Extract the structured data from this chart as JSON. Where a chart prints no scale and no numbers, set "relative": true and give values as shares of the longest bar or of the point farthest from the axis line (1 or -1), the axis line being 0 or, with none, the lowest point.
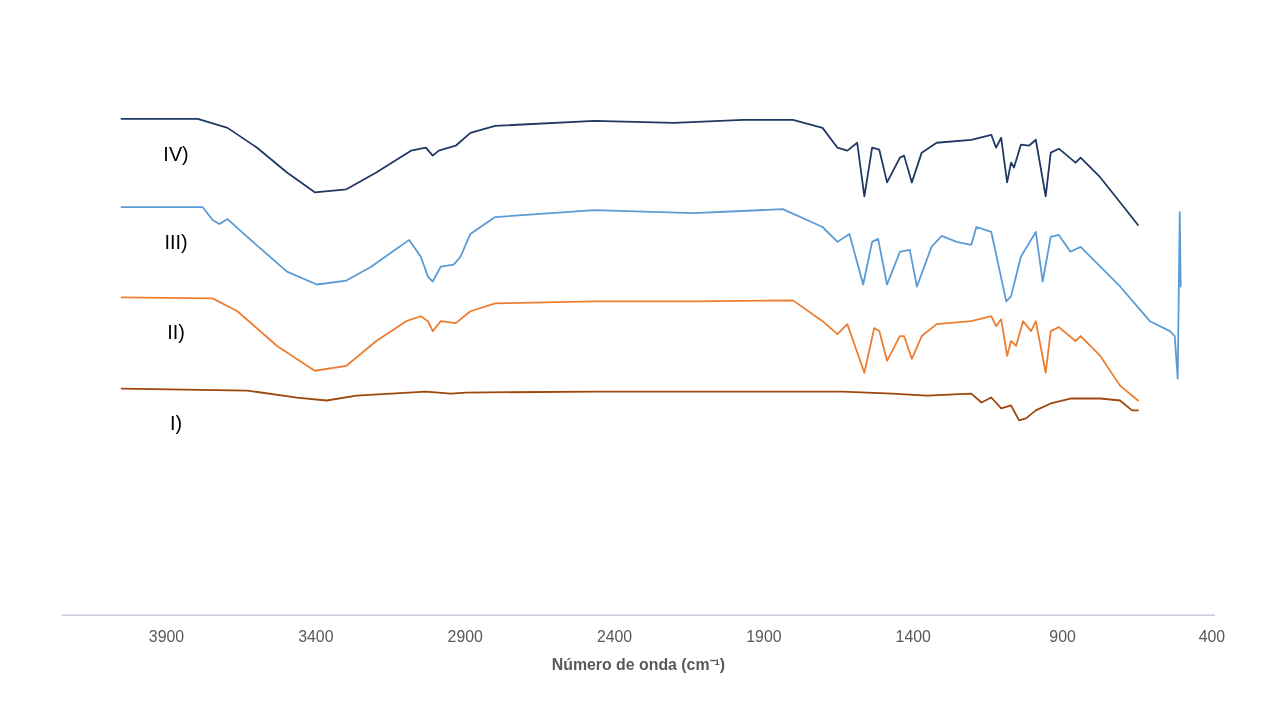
{
  "chart_data": {
    "type": "line",
    "relative": true,
    "xlabel": "Número de onda (cm⁻¹)",
    "xlim": [
      4250,
      390
    ],
    "xticks": [
      3900,
      3400,
      2900,
      2400,
      1900,
      1400,
      900,
      400
    ],
    "grid": false,
    "legend": false,
    "marker": "none",
    "line_style": "solid",
    "series": [
      {
        "name": "IV)",
        "color": "#203864",
        "x": [
          4049,
          3794,
          3694,
          3595,
          3495,
          3402,
          3296,
          3196,
          3080,
          3030,
          3007,
          2987,
          2930,
          2881,
          2798,
          2466,
          2200,
          1967,
          1801,
          1702,
          1652,
          1619,
          1586,
          1562,
          1536,
          1512,
          1486,
          1443,
          1429,
          1403,
          1370,
          1320,
          1204,
          1137,
          1121,
          1104,
          1084,
          1071,
          1061,
          1038,
          1011,
          988,
          955,
          938,
          911,
          855,
          838,
          772,
          706,
          646
        ],
        "values": [
          1.0,
          1.0,
          0.982,
          0.942,
          0.892,
          0.852,
          0.858,
          0.892,
          0.936,
          0.942,
          0.926,
          0.936,
          0.946,
          0.972,
          0.986,
          0.996,
          0.992,
          0.998,
          0.998,
          0.982,
          0.942,
          0.936,
          0.952,
          0.844,
          0.942,
          0.938,
          0.872,
          0.922,
          0.926,
          0.872,
          0.932,
          0.952,
          0.958,
          0.968,
          0.942,
          0.962,
          0.872,
          0.912,
          0.902,
          0.948,
          0.946,
          0.958,
          0.844,
          0.932,
          0.94,
          0.912,
          0.922,
          0.882,
          0.832,
          0.786
        ]
      },
      {
        "name": "III)",
        "color": "#5b9bd5",
        "x": [
          4049,
          3777,
          3744,
          3721,
          3694,
          3628,
          3495,
          3395,
          3296,
          3213,
          3086,
          3047,
          3023,
          3007,
          2980,
          2937,
          2914,
          2881,
          2798,
          2466,
          2134,
          1835,
          1702,
          1652,
          1612,
          1566,
          1536,
          1516,
          1486,
          1443,
          1410,
          1386,
          1337,
          1303,
          1253,
          1204,
          1187,
          1137,
          1087,
          1071,
          1038,
          988,
          965,
          938,
          911,
          872,
          838,
          772,
          706,
          606,
          539,
          523,
          513,
          506,
          503
        ],
        "values": [
          0.822,
          0.822,
          0.796,
          0.788,
          0.798,
          0.762,
          0.692,
          0.666,
          0.674,
          0.702,
          0.756,
          0.722,
          0.682,
          0.672,
          0.702,
          0.706,
          0.722,
          0.768,
          0.802,
          0.816,
          0.81,
          0.818,
          0.782,
          0.752,
          0.768,
          0.666,
          0.752,
          0.758,
          0.666,
          0.732,
          0.736,
          0.662,
          0.742,
          0.764,
          0.752,
          0.746,
          0.782,
          0.772,
          0.632,
          0.642,
          0.722,
          0.772,
          0.672,
          0.762,
          0.766,
          0.732,
          0.742,
          0.702,
          0.662,
          0.592,
          0.572,
          0.562,
          0.476,
          0.812,
          0.662
        ]
      },
      {
        "name": "II)",
        "color": "#ed7d31",
        "x": [
          4049,
          3744,
          3661,
          3528,
          3402,
          3296,
          3196,
          3096,
          3047,
          3023,
          3007,
          2980,
          2930,
          2881,
          2798,
          2466,
          2134,
          1801,
          1702,
          1652,
          1619,
          1562,
          1529,
          1512,
          1486,
          1443,
          1429,
          1403,
          1370,
          1320,
          1204,
          1137,
          1121,
          1104,
          1084,
          1071,
          1054,
          1031,
          1004,
          988,
          955,
          938,
          911,
          855,
          838,
          772,
          706,
          646
        ],
        "values": [
          0.64,
          0.638,
          0.612,
          0.542,
          0.492,
          0.502,
          0.552,
          0.592,
          0.602,
          0.592,
          0.572,
          0.592,
          0.588,
          0.612,
          0.628,
          0.632,
          0.632,
          0.634,
          0.592,
          0.566,
          0.586,
          0.488,
          0.578,
          0.572,
          0.512,
          0.562,
          0.562,
          0.516,
          0.562,
          0.586,
          0.592,
          0.602,
          0.582,
          0.596,
          0.522,
          0.552,
          0.542,
          0.592,
          0.572,
          0.592,
          0.488,
          0.572,
          0.58,
          0.552,
          0.562,
          0.522,
          0.462,
          0.432
        ]
      },
      {
        "name": "I)",
        "color": "#9e480e",
        "x": [
          4049,
          3628,
          3462,
          3362,
          3262,
          3030,
          2947,
          2897,
          2466,
          2134,
          1635,
          1469,
          1353,
          1204,
          1170,
          1137,
          1104,
          1071,
          1044,
          1021,
          988,
          938,
          872,
          772,
          706,
          666,
          646
        ],
        "values": [
          0.456,
          0.452,
          0.438,
          0.432,
          0.442,
          0.45,
          0.446,
          0.448,
          0.45,
          0.45,
          0.45,
          0.446,
          0.442,
          0.446,
          0.428,
          0.438,
          0.416,
          0.422,
          0.392,
          0.396,
          0.412,
          0.426,
          0.436,
          0.436,
          0.432,
          0.412,
          0.412
        ]
      }
    ]
  }
}
